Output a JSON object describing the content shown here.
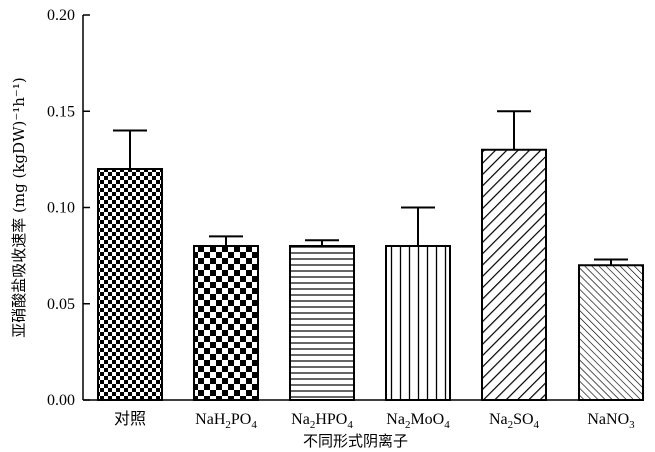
{
  "chart_data": {
    "type": "bar",
    "title": "",
    "xlabel": "不同形式阴离子",
    "ylabel": "亚硝酸盐吸收速率 (mg (kgDW)⁻¹h⁻¹)",
    "ylim": [
      0,
      0.2
    ],
    "yticks": [
      "0.00",
      "0.05",
      "0.10",
      "0.15",
      "0.20"
    ],
    "grid": false,
    "categories": [
      {
        "label": "对照"
      },
      {
        "label": "NaH",
        "sub1": "2",
        "mid": "PO",
        "sub2": "4"
      },
      {
        "label": "Na",
        "sub1": "2",
        "mid": "HPO",
        "sub2": "4"
      },
      {
        "label": "Na",
        "sub1": "2",
        "mid": "MoO",
        "sub2": "4"
      },
      {
        "label": "Na",
        "sub1": "2",
        "mid": "SO",
        "sub2": "4"
      },
      {
        "label": "NaNO",
        "sub1": "3"
      }
    ],
    "values": [
      0.12,
      0.08,
      0.08,
      0.08,
      0.13,
      0.07
    ],
    "errors": [
      0.02,
      0.005,
      0.003,
      0.02,
      0.02,
      0.003
    ],
    "patterns": [
      "small-checker",
      "large-checker",
      "horizontal-stripes",
      "vertical-stripes",
      "diagonal-forward",
      "diagonal-back"
    ],
    "colors": {
      "ink": "#000000",
      "fill": "#ffffff"
    }
  }
}
